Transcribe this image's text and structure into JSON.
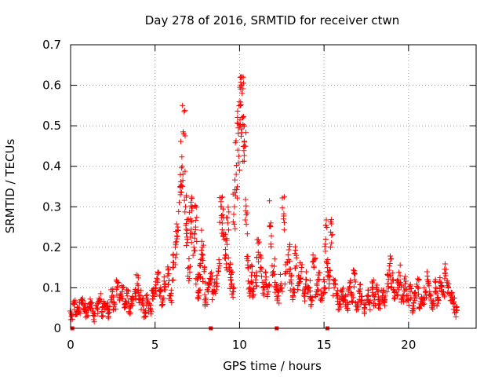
{
  "chart_data": {
    "type": "scatter",
    "title": "Day 278 of 2016, SRMTID for receiver ctwn",
    "xlabel": "GPS time / hours",
    "ylabel": "SRMTID / TECUs",
    "xlim": [
      0,
      24
    ],
    "ylim": [
      0,
      0.7
    ],
    "x_ticks": [
      0,
      5,
      10,
      15,
      20
    ],
    "x_tick_labels": [
      "0",
      "5",
      "10",
      "15",
      "20"
    ],
    "y_ticks": [
      0,
      0.1,
      0.2,
      0.3,
      0.4,
      0.5,
      0.6,
      0.7
    ],
    "y_tick_labels": [
      "0",
      "0.1",
      "0.2",
      "0.3",
      "0.4",
      "0.5",
      "0.6",
      "0.7"
    ],
    "grid": true,
    "marker": "plus",
    "color": "#ff0000",
    "series": [
      {
        "name": "SRMTID",
        "x": [
          0.05,
          0.2,
          0.35,
          0.5,
          0.65,
          0.8,
          0.95,
          1.1,
          1.25,
          1.4,
          1.55,
          1.7,
          1.85,
          2.0,
          2.15,
          2.3,
          2.45,
          2.6,
          2.75,
          2.9,
          3.05,
          3.2,
          3.35,
          3.5,
          3.65,
          3.8,
          3.95,
          4.1,
          4.25,
          4.4,
          4.55,
          4.7,
          4.85,
          5.0,
          5.15,
          5.3,
          5.45,
          5.6,
          5.75,
          5.9,
          6.05,
          6.2,
          6.35,
          6.5,
          6.6,
          6.7,
          6.8,
          6.9,
          7.0,
          7.1,
          7.2,
          7.3,
          7.4,
          7.5,
          7.6,
          7.7,
          7.8,
          7.9,
          8.0,
          8.15,
          8.3,
          8.45,
          8.6,
          8.75,
          8.9,
          9.0,
          9.1,
          9.2,
          9.3,
          9.4,
          9.5,
          9.6,
          9.7,
          9.8,
          9.9,
          10.0,
          10.05,
          10.1,
          10.15,
          10.2,
          10.3,
          10.4,
          10.5,
          10.6,
          10.7,
          10.8,
          10.95,
          11.1,
          11.25,
          11.4,
          11.55,
          11.7,
          11.85,
          12.0,
          12.15,
          12.3,
          12.45,
          12.6,
          12.75,
          12.9,
          13.05,
          13.2,
          13.35,
          13.5,
          13.65,
          13.8,
          13.95,
          14.1,
          14.25,
          14.4,
          14.55,
          14.7,
          14.85,
          15.0,
          15.1,
          15.2,
          15.3,
          15.45,
          15.6,
          15.75,
          15.9,
          16.05,
          16.2,
          16.35,
          16.5,
          16.65,
          16.8,
          16.95,
          17.1,
          17.25,
          17.4,
          17.55,
          17.7,
          17.85,
          18.0,
          18.15,
          18.3,
          18.45,
          18.6,
          18.75,
          18.9,
          19.05,
          19.2,
          19.35,
          19.5,
          19.65,
          19.8,
          19.95,
          20.1,
          20.25,
          20.4,
          20.55,
          20.7,
          20.85,
          21.0,
          21.15,
          21.3,
          21.45,
          21.6,
          21.75,
          21.9,
          22.05,
          22.2,
          22.35,
          22.5,
          22.65,
          22.8
        ],
        "y": [
          0.03,
          0.06,
          0.04,
          0.05,
          0.07,
          0.05,
          0.04,
          0.06,
          0.05,
          0.03,
          0.05,
          0.07,
          0.04,
          0.06,
          0.05,
          0.04,
          0.08,
          0.06,
          0.1,
          0.07,
          0.09,
          0.06,
          0.08,
          0.05,
          0.07,
          0.09,
          0.11,
          0.08,
          0.06,
          0.04,
          0.07,
          0.05,
          0.08,
          0.1,
          0.12,
          0.09,
          0.07,
          0.11,
          0.13,
          0.08,
          0.15,
          0.2,
          0.25,
          0.33,
          0.4,
          0.48,
          0.3,
          0.22,
          0.15,
          0.27,
          0.3,
          0.2,
          0.25,
          0.12,
          0.08,
          0.16,
          0.2,
          0.14,
          0.07,
          0.1,
          0.12,
          0.09,
          0.11,
          0.14,
          0.3,
          0.28,
          0.22,
          0.18,
          0.26,
          0.15,
          0.12,
          0.09,
          0.3,
          0.38,
          0.44,
          0.5,
          0.55,
          0.6,
          0.58,
          0.52,
          0.45,
          0.28,
          0.15,
          0.1,
          0.13,
          0.08,
          0.12,
          0.21,
          0.15,
          0.1,
          0.12,
          0.09,
          0.26,
          0.14,
          0.1,
          0.08,
          0.11,
          0.27,
          0.14,
          0.17,
          0.12,
          0.09,
          0.18,
          0.11,
          0.14,
          0.08,
          0.12,
          0.1,
          0.07,
          0.15,
          0.09,
          0.12,
          0.08,
          0.1,
          0.22,
          0.15,
          0.12,
          0.23,
          0.1,
          0.08,
          0.06,
          0.09,
          0.07,
          0.05,
          0.1,
          0.08,
          0.12,
          0.06,
          0.09,
          0.07,
          0.05,
          0.08,
          0.06,
          0.1,
          0.07,
          0.09,
          0.06,
          0.08,
          0.07,
          0.11,
          0.16,
          0.12,
          0.09,
          0.1,
          0.13,
          0.08,
          0.11,
          0.07,
          0.09,
          0.05,
          0.08,
          0.1,
          0.06,
          0.07,
          0.09,
          0.12,
          0.08,
          0.06,
          0.1,
          0.07,
          0.11,
          0.09,
          0.13,
          0.1,
          0.08,
          0.06,
          0.04
        ]
      }
    ],
    "x_axis_markers": [
      0.1,
      8.3,
      12.2,
      15.2
    ]
  }
}
